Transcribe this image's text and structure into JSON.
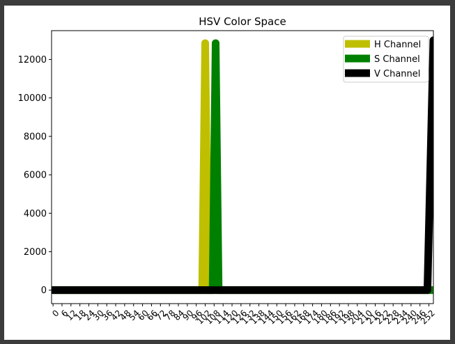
{
  "chart_data": {
    "type": "line",
    "title": "HSV Color Space",
    "xlabel": "",
    "ylabel": "",
    "xlim": [
      -1,
      255
    ],
    "ylim": [
      -700,
      13500
    ],
    "x_ticks": [
      0,
      6,
      12,
      18,
      24,
      30,
      36,
      42,
      48,
      54,
      60,
      66,
      72,
      78,
      84,
      90,
      96,
      102,
      108,
      114,
      120,
      126,
      132,
      138,
      144,
      150,
      156,
      162,
      168,
      174,
      180,
      186,
      192,
      198,
      204,
      210,
      216,
      222,
      228,
      234,
      240,
      246,
      252
    ],
    "y_ticks": [
      0,
      2000,
      4000,
      6000,
      8000,
      10000,
      12000
    ],
    "grid": false,
    "legend_position": "top-right",
    "series": [
      {
        "name": "H Channel",
        "color": "#bfbf00",
        "points": [
          [
            0,
            0
          ],
          [
            100,
            0
          ],
          [
            102,
            12850
          ],
          [
            104,
            0
          ],
          [
            255,
            0
          ]
        ]
      },
      {
        "name": "S Channel",
        "color": "#008000",
        "points": [
          [
            0,
            0
          ],
          [
            107,
            0
          ],
          [
            109,
            12850
          ],
          [
            111,
            0
          ],
          [
            255,
            0
          ]
        ]
      },
      {
        "name": "V Channel",
        "color": "#000000",
        "points": [
          [
            0,
            0
          ],
          [
            251,
            0
          ],
          [
            255,
            13000
          ]
        ]
      }
    ]
  }
}
